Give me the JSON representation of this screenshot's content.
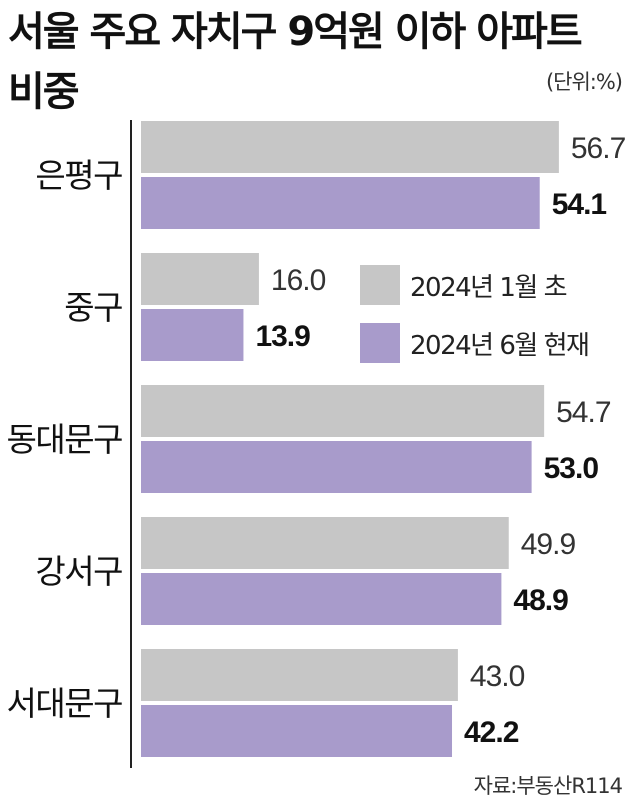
{
  "title_line1": "서울 주요 자치구 9억원 이하 아파트",
  "title_line2": "비중",
  "unit": "(단위:%)",
  "source": "자료:부동산R114",
  "colors": {
    "old": "#c6c6c6",
    "new": "#a89bcb"
  },
  "chart_data": {
    "type": "bar",
    "orientation": "horizontal",
    "title": "서울 주요 자치구 9억원 이하 아파트 비중",
    "categories": [
      "은평구",
      "중구",
      "동대문구",
      "강서구",
      "서대문구"
    ],
    "series": [
      {
        "name": "2024년 1월 초",
        "values": [
          56.7,
          16.0,
          54.7,
          49.9,
          43.0
        ]
      },
      {
        "name": "2024년 6월 현재",
        "values": [
          54.1,
          13.9,
          53.0,
          48.9,
          42.2
        ]
      }
    ],
    "value_labels": {
      "old": [
        "56.7",
        "16.0",
        "54.7",
        "49.9",
        "43.0"
      ],
      "new": [
        "54.1",
        "13.9",
        "53.0",
        "48.9",
        "42.2"
      ]
    },
    "legend": [
      "2024년 1월 초",
      "2024년 6월 현재"
    ],
    "legend_position": "middle-right",
    "grid": false
  }
}
